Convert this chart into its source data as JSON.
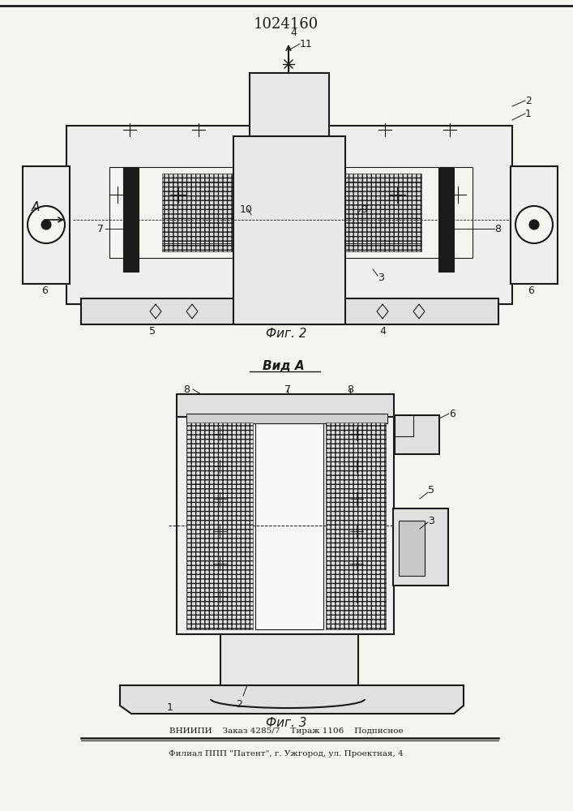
{
  "title": "1024160",
  "fig2_label": "Фиг. 2",
  "figA_label": "Вид А",
  "fig3_label": "Фиг. 3",
  "footer_line1": "ВНИИПИ    Заказ 4285/7    Тираж 1106    Подписное",
  "footer_line2": "Филиал ППП \"Патент\", г. Ужгород, ул. Проектная, 4",
  "bg_color": "#f5f5f0",
  "line_color": "#1a1a1a",
  "fig_width": 7.07,
  "fig_height": 10.0
}
